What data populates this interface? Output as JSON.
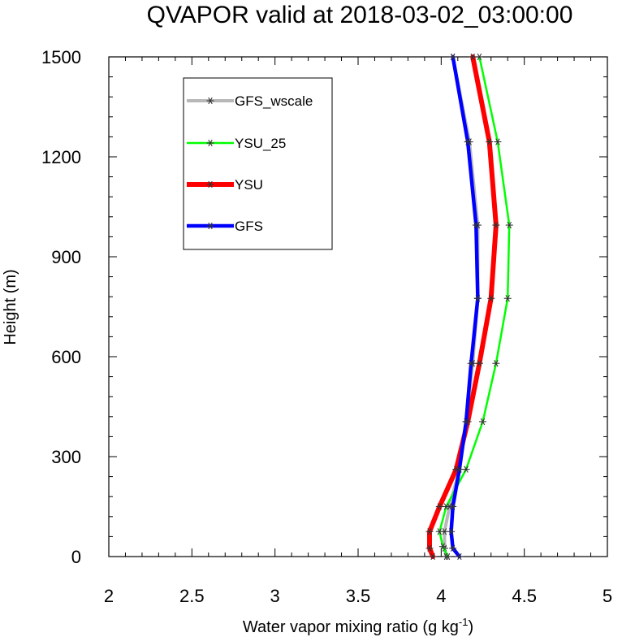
{
  "chart_data": {
    "type": "line",
    "title": "QVAPOR valid at 2018-03-02_03:00:00",
    "xlabel": "Water vapor mixing ratio (g kg",
    "xlabel_sup": "-1",
    "xlabel_end": ")",
    "ylabel": "Height (m)",
    "xlim": [
      2,
      5
    ],
    "ylim": [
      0,
      1500
    ],
    "xticks": [
      2,
      2.5,
      3,
      3.5,
      4,
      4.5,
      5
    ],
    "xtick_labels": [
      "2",
      "2.5",
      "3",
      "3.5",
      "4",
      "4.5",
      "5"
    ],
    "yticks": [
      0,
      300,
      600,
      900,
      1200,
      1500
    ],
    "ytick_labels": [
      "0",
      "300",
      "600",
      "900",
      "1200",
      "1500"
    ],
    "grid": false,
    "legend_position": "top-left",
    "series": [
      {
        "name": "GFS_wscale",
        "color": "#b8b8b8",
        "points": [
          [
            4.03,
            0
          ],
          [
            4.02,
            25
          ],
          [
            4.02,
            75
          ],
          [
            4.05,
            150
          ],
          [
            4.11,
            262
          ],
          [
            4.15,
            405
          ],
          [
            4.19,
            580
          ],
          [
            4.22,
            775
          ],
          [
            4.22,
            995
          ],
          [
            4.17,
            1245
          ],
          [
            4.07,
            1500
          ]
        ]
      },
      {
        "name": "YSU_25",
        "color": "#00ff00",
        "points": [
          [
            4.04,
            0
          ],
          [
            4.01,
            30
          ],
          [
            3.99,
            75
          ],
          [
            4.03,
            150
          ],
          [
            4.15,
            262
          ],
          [
            4.25,
            405
          ],
          [
            4.33,
            580
          ],
          [
            4.4,
            775
          ],
          [
            4.41,
            995
          ],
          [
            4.34,
            1245
          ],
          [
            4.23,
            1500
          ]
        ]
      },
      {
        "name": "YSU",
        "color": "#ff0000",
        "points": [
          [
            3.95,
            0
          ],
          [
            3.93,
            25
          ],
          [
            3.93,
            75
          ],
          [
            3.99,
            150
          ],
          [
            4.09,
            262
          ],
          [
            4.16,
            405
          ],
          [
            4.23,
            580
          ],
          [
            4.3,
            775
          ],
          [
            4.33,
            995
          ],
          [
            4.29,
            1245
          ],
          [
            4.19,
            1500
          ]
        ]
      },
      {
        "name": "GFS",
        "color": "#0000ff",
        "points": [
          [
            4.11,
            0
          ],
          [
            4.07,
            25
          ],
          [
            4.06,
            75
          ],
          [
            4.07,
            150
          ],
          [
            4.11,
            262
          ],
          [
            4.15,
            405
          ],
          [
            4.18,
            580
          ],
          [
            4.22,
            775
          ],
          [
            4.21,
            995
          ],
          [
            4.16,
            1245
          ],
          [
            4.07,
            1500
          ]
        ]
      }
    ]
  }
}
